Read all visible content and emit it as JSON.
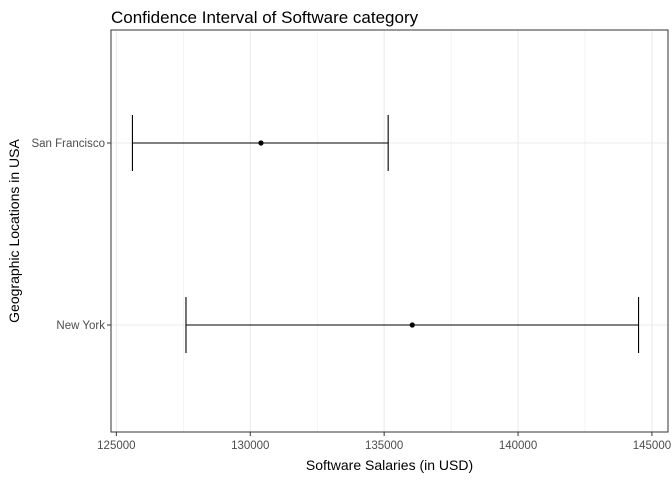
{
  "chart_data": {
    "type": "errorbar",
    "title": "Confidence Interval of Software category",
    "xlabel": "Software Salaries (in USD)",
    "ylabel": "Geographic Locations in USA",
    "xlim": [
      124800,
      145600
    ],
    "x_ticks": [
      125000,
      130000,
      135000,
      140000,
      145000
    ],
    "x_tick_labels": [
      "125000",
      "130000",
      "135000",
      "140000",
      "145000"
    ],
    "categories": [
      "San Francisco",
      "New York"
    ],
    "points": [
      {
        "category": "San Francisco",
        "lower": 125600,
        "mean": 130400,
        "upper": 135150
      },
      {
        "category": "New York",
        "lower": 127600,
        "mean": 136050,
        "upper": 144500
      }
    ],
    "grid": true,
    "colors": {
      "grid": "#ebebeb",
      "panel_border": "#333333",
      "marks": "#000000",
      "axis_text": "#4d4d4d",
      "title_text": "#000000"
    }
  }
}
